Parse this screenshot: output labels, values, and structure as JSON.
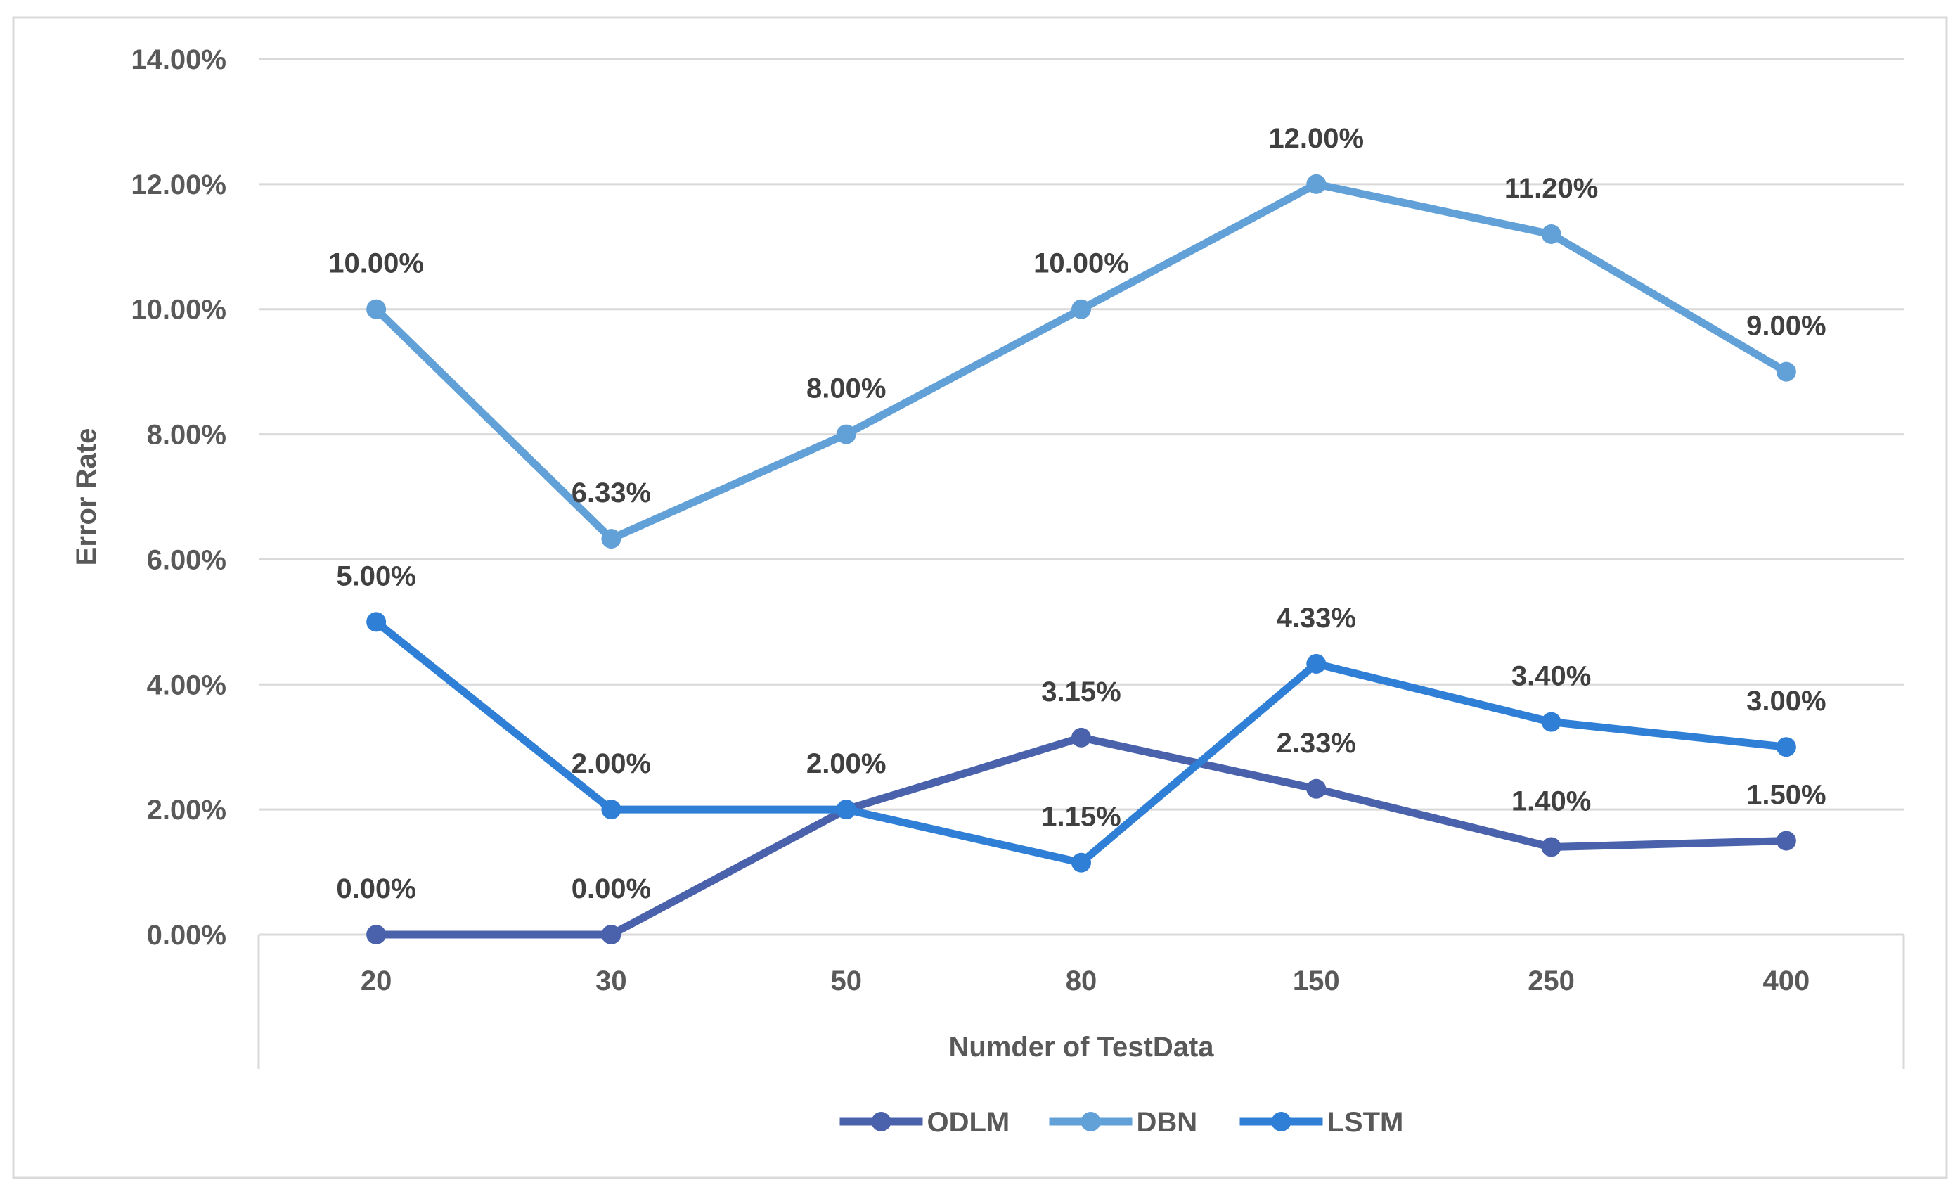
{
  "chart_data": {
    "type": "line",
    "title": "",
    "xlabel": "Numder of TestData",
    "ylabel": "Error Rate",
    "categories": [
      "20",
      "30",
      "50",
      "80",
      "150",
      "250",
      "400"
    ],
    "ylim": [
      0,
      14
    ],
    "y_ticks": [
      {
        "value": 0,
        "label": "0.00%"
      },
      {
        "value": 2,
        "label": "2.00%"
      },
      {
        "value": 4,
        "label": "4.00%"
      },
      {
        "value": 6,
        "label": "6.00%"
      },
      {
        "value": 8,
        "label": "8.00%"
      },
      {
        "value": 10,
        "label": "10.00%"
      },
      {
        "value": 12,
        "label": "12.00%"
      },
      {
        "value": 14,
        "label": "14.00%"
      }
    ],
    "grid": true,
    "legend_position": "bottom",
    "series": [
      {
        "name": "ODLM",
        "color": "#4a62ab",
        "values": [
          0,
          0,
          2.0,
          3.15,
          2.33,
          1.4,
          1.5
        ],
        "labels": [
          "0.00%",
          "0.00%",
          "2.00%",
          "3.15%",
          "2.33%",
          "1.40%",
          "1.50%"
        ]
      },
      {
        "name": "DBN",
        "color": "#62a0d8",
        "values": [
          10.0,
          6.33,
          8.0,
          10.0,
          12.0,
          11.2,
          9.0
        ],
        "labels": [
          "10.00%",
          "6.33%",
          "8.00%",
          "10.00%",
          "12.00%",
          "11.20%",
          "9.00%"
        ]
      },
      {
        "name": "LSTM",
        "color": "#2f7fd6",
        "values": [
          5.0,
          2.0,
          2.0,
          1.15,
          4.33,
          3.4,
          3.0
        ],
        "labels": [
          "5.00%",
          "2.00%",
          "2.00%",
          "1.15%",
          "4.33%",
          "3.40%",
          "3.00%"
        ]
      }
    ]
  }
}
